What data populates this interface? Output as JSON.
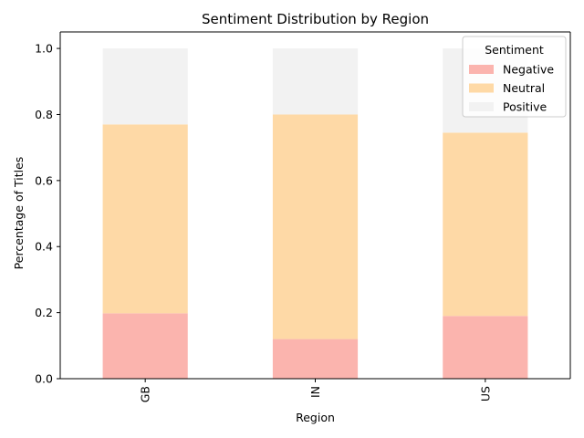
{
  "chart_data": {
    "type": "bar",
    "stacked": true,
    "title": "Sentiment Distribution by Region",
    "xlabel": "Region",
    "ylabel": "Percentage of Titles",
    "categories": [
      "GB",
      "IN",
      "US"
    ],
    "series": [
      {
        "name": "Negative",
        "color": "#fbb4ae",
        "values": [
          0.198,
          0.12,
          0.19
        ]
      },
      {
        "name": "Neutral",
        "color": "#fed9a6",
        "values": [
          0.572,
          0.68,
          0.555
        ]
      },
      {
        "name": "Positive",
        "color": "#f2f2f2",
        "values": [
          0.23,
          0.2,
          0.255
        ]
      }
    ],
    "ylim": [
      0,
      1.05
    ],
    "yticks": [
      "0.0",
      "0.2",
      "0.4",
      "0.6",
      "0.8",
      "1.0"
    ],
    "grid": false,
    "legend": {
      "title": "Sentiment",
      "placement": "top-right"
    }
  }
}
